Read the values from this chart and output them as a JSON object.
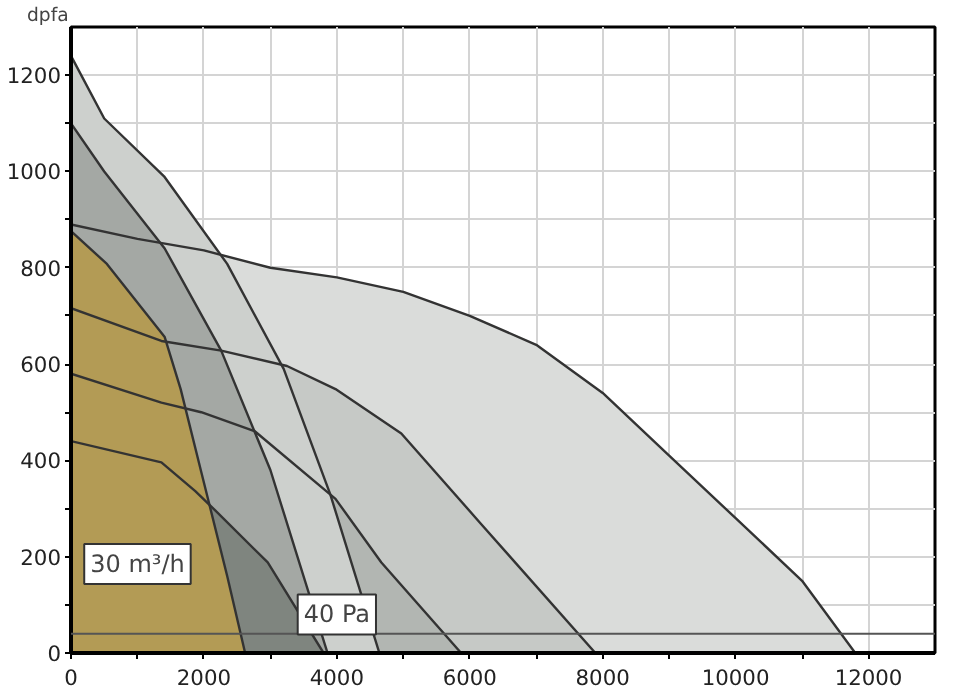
{
  "chart_data": {
    "type": "area",
    "ylabel": "dpfa",
    "xlim": [
      0,
      13000
    ],
    "ylim": [
      0,
      1300
    ],
    "xticks": [
      0,
      {
        "value": 1000,
        "label": null
      },
      2000,
      {
        "value": 3000,
        "label": null
      },
      4000,
      {
        "value": 5000,
        "label": null
      },
      6000,
      {
        "value": 7000,
        "label": null
      },
      8000,
      {
        "value": 9000,
        "label": null
      },
      10000,
      {
        "value": 11000,
        "label": null
      },
      12000
    ],
    "yticks": [
      0,
      {
        "value": 100,
        "label": null
      },
      200,
      {
        "value": 300,
        "label": null
      },
      400,
      {
        "value": 500,
        "label": null
      },
      600,
      {
        "value": 700,
        "label": null
      },
      800,
      {
        "value": 900,
        "label": null
      },
      1000,
      {
        "value": 1100,
        "label": null
      },
      1200
    ],
    "grid": true,
    "series": [
      {
        "color": "#dadcda",
        "x": [
          0,
          1000,
          2000,
          3000,
          4000,
          5000,
          6000,
          7000,
          8000,
          9000,
          10000,
          11000,
          11800
        ],
        "values": [
          890,
          860,
          836,
          800,
          780,
          750,
          700,
          640,
          540,
          410,
          280,
          150,
          0
        ]
      },
      {
        "color": "#c6c9c6",
        "x": [
          0,
          1360,
          2260,
          3250,
          3980,
          4970,
          6170,
          7890
        ],
        "values": [
          716,
          648,
          628,
          596,
          548,
          456,
          268,
          0
        ]
      },
      {
        "color": "#b2b6b2",
        "x": [
          0,
          1360,
          1960,
          2770,
          3980,
          4670,
          5870
        ],
        "values": [
          580,
          520,
          500,
          460,
          320,
          188,
          0
        ]
      },
      {
        "color": "#cdd0cd",
        "x": [
          0,
          500,
          1400,
          2350,
          3200,
          3900,
          4640
        ],
        "values": [
          1240,
          1110,
          990,
          808,
          590,
          330,
          0
        ]
      },
      {
        "color": "#a4a8a4",
        "x": [
          0,
          500,
          1410,
          2260,
          3000,
          3860
        ],
        "values": [
          1100,
          1000,
          840,
          628,
          380,
          0
        ]
      },
      {
        "color": "#7f857f",
        "x": [
          0,
          1360,
          1870,
          2170,
          2960,
          3800
        ],
        "values": [
          440,
          396,
          336,
          296,
          188,
          0
        ]
      },
      {
        "color": "#b39b55",
        "x": [
          0,
          540,
          1410,
          1650,
          1960,
          2350,
          2620
        ],
        "values": [
          876,
          808,
          656,
          548,
          376,
          160,
          0
        ]
      }
    ],
    "ref_lines": [
      {
        "axis": "y",
        "value": 40,
        "label": "40 Pa",
        "color": "#555555"
      }
    ],
    "annotations": [
      "30 m³/h"
    ]
  }
}
